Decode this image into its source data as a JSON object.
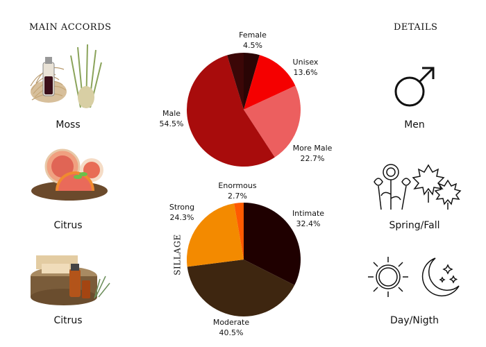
{
  "headings": {
    "main_accords": "MAIN ACCORDS",
    "details": "DETAILS"
  },
  "accords": [
    {
      "label": "Moss",
      "icon": "moss-bundle-icon"
    },
    {
      "label": "Citrus",
      "icon": "grapefruit-icon"
    },
    {
      "label": "Citrus",
      "icon": "wood-bottle-icon"
    }
  ],
  "details": [
    {
      "label": "Men",
      "icon": "male-symbol-icon"
    },
    {
      "label": "Spring/Fall",
      "icon": "flowers-leaves-icon"
    },
    {
      "label": "Day/Nigth",
      "icon": "sun-moon-icon"
    }
  ],
  "silage_label": "SILLAGE",
  "chart_data": [
    {
      "type": "pie",
      "title": "",
      "slices": [
        {
          "name": "Female",
          "value": 4.5,
          "label": "4.5%",
          "color": "#2a0505"
        },
        {
          "name": "Unisex",
          "value": 13.6,
          "label": "13.6%",
          "color": "#f50000"
        },
        {
          "name": "More Male",
          "value": 22.7,
          "label": "22.7%",
          "color": "#ec5f5f"
        },
        {
          "name": "Male",
          "value": 54.5,
          "label": "54.5%",
          "color": "#a80c0c"
        },
        {
          "name": "",
          "value": 4.7,
          "label": "",
          "color": "#3b0707"
        }
      ]
    },
    {
      "type": "pie",
      "title": "SILLAGE",
      "slices": [
        {
          "name": "Intimate",
          "value": 32.4,
          "label": "32.4%",
          "color": "#1f0000"
        },
        {
          "name": "Moderate",
          "value": 40.5,
          "label": "40.5%",
          "color": "#3e2610"
        },
        {
          "name": "Strong",
          "value": 24.3,
          "label": "24.3%",
          "color": "#f38a00"
        },
        {
          "name": "Enormous",
          "value": 2.7,
          "label": "2.7%",
          "color": "#ff5a00"
        }
      ]
    }
  ]
}
